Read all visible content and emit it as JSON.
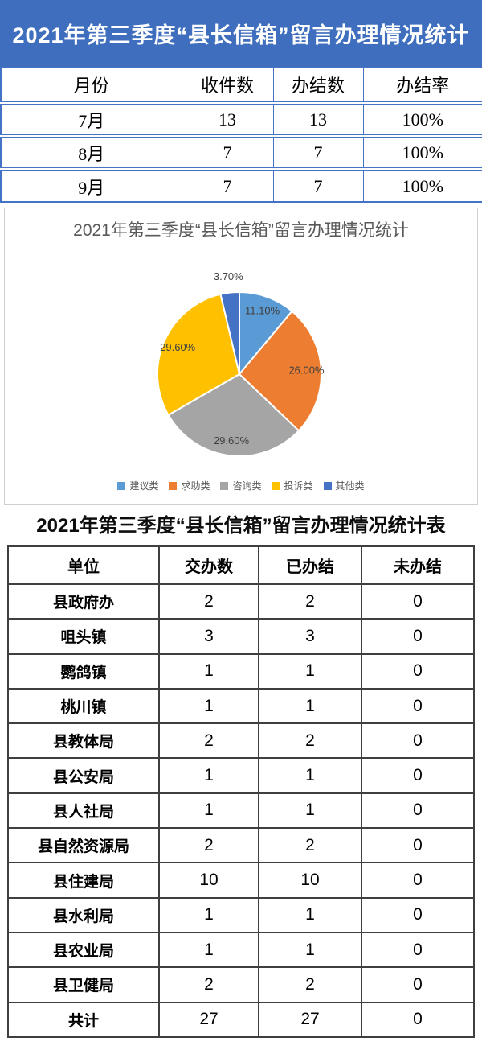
{
  "page": {
    "banner": {
      "title": "2021年第三季度“县长信箱”留言办理情况统计"
    },
    "monthly_table": {
      "headers": [
        "月份",
        "收件数",
        "办结数",
        "办结率"
      ],
      "rows": [
        [
          "7月",
          "13",
          "13",
          "100%"
        ],
        [
          "8月",
          "7",
          "7",
          "100%"
        ],
        [
          "9月",
          "7",
          "7",
          "100%"
        ]
      ]
    },
    "section2": {
      "title": "2021年第三季度“县长信箱”留言办理情况统计表"
    },
    "unit_table": {
      "headers": [
        "单位",
        "交办数",
        "已办结",
        "未办结"
      ],
      "rows": [
        [
          "县政府办",
          "2",
          "2",
          "0"
        ],
        [
          "咀头镇",
          "3",
          "3",
          "0"
        ],
        [
          "鹦鸽镇",
          "1",
          "1",
          "0"
        ],
        [
          "桃川镇",
          "1",
          "1",
          "0"
        ],
        [
          "县教体局",
          "2",
          "2",
          "0"
        ],
        [
          "县公安局",
          "1",
          "1",
          "0"
        ],
        [
          "县人社局",
          "1",
          "1",
          "0"
        ],
        [
          "县自然资源局",
          "2",
          "2",
          "0"
        ],
        [
          "县住建局",
          "10",
          "10",
          "0"
        ],
        [
          "县水利局",
          "1",
          "1",
          "0"
        ],
        [
          "县农业局",
          "1",
          "1",
          "0"
        ],
        [
          "县卫健局",
          "2",
          "2",
          "0"
        ],
        [
          "共计",
          "27",
          "27",
          "0"
        ]
      ]
    },
    "colors": {
      "banner_blue": "#3E6EBD",
      "table1_border_blue": "#4472C4",
      "table2_border_dark": "#3f3f3f",
      "chart_text_gray": "#595959"
    }
  },
  "chart_data": {
    "type": "pie",
    "title": "2021年第三季度“县长信箱”留言办理情况统计",
    "categories": [
      "建议类",
      "求助类",
      "咨询类",
      "投诉类",
      "其他类"
    ],
    "values": [
      11.1,
      26.0,
      29.6,
      29.6,
      3.7
    ],
    "labels": [
      "11.10%",
      "26.00%",
      "29.60%",
      "29.60%",
      "3.70%"
    ],
    "colors": [
      "#5B9BD5",
      "#ED7D31",
      "#A5A5A5",
      "#FFC000",
      "#4472C4"
    ],
    "start_angle_deg": 0,
    "direction": "clockwise",
    "legend_position": "bottom",
    "label_style": "percent-inside, small slice labeled outside"
  }
}
